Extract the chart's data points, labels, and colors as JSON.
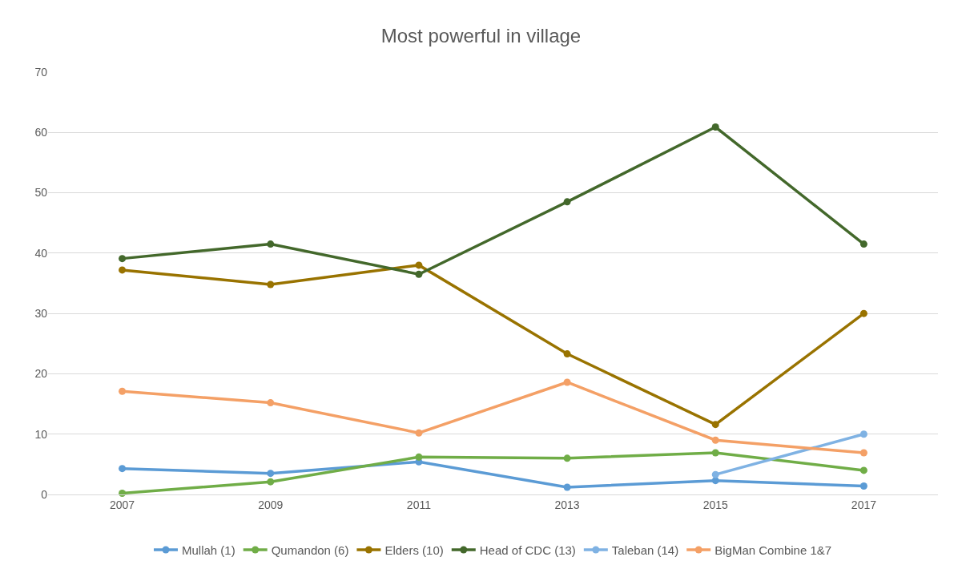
{
  "chart_data": {
    "type": "line",
    "title": "Most powerful in village",
    "categories": [
      "2007",
      "2009",
      "2011",
      "2013",
      "2015",
      "2017"
    ],
    "series": [
      {
        "name": "Mullah (1)",
        "color": "#5b9bd5",
        "values": [
          4.3,
          3.5,
          5.4,
          1.2,
          2.3,
          1.4
        ]
      },
      {
        "name": "Qumandon (6)",
        "color": "#70ad47",
        "values": [
          0.2,
          2.1,
          6.2,
          6.0,
          6.9,
          4.0
        ]
      },
      {
        "name": "Elders (10)",
        "color": "#997300",
        "values": [
          37.2,
          34.8,
          38.0,
          23.3,
          11.6,
          30.0
        ]
      },
      {
        "name": "Head of CDC (13)",
        "color": "#43682b",
        "values": [
          39.1,
          41.5,
          36.5,
          48.5,
          60.9,
          41.5
        ]
      },
      {
        "name": "Taleban (14)",
        "color": "#7fb2e3",
        "values": [
          null,
          null,
          null,
          null,
          3.3,
          10.0
        ]
      },
      {
        "name": "BigMan Combine 1&7",
        "color": "#f4a066",
        "values": [
          17.1,
          15.2,
          10.2,
          18.6,
          9.0,
          6.9
        ]
      }
    ],
    "ylim": [
      0,
      70
    ],
    "yticks": [
      0,
      10,
      20,
      30,
      40,
      50,
      60,
      70
    ],
    "grid": "y",
    "legend": "bottom",
    "marker": "circle",
    "line_style": "solid"
  }
}
